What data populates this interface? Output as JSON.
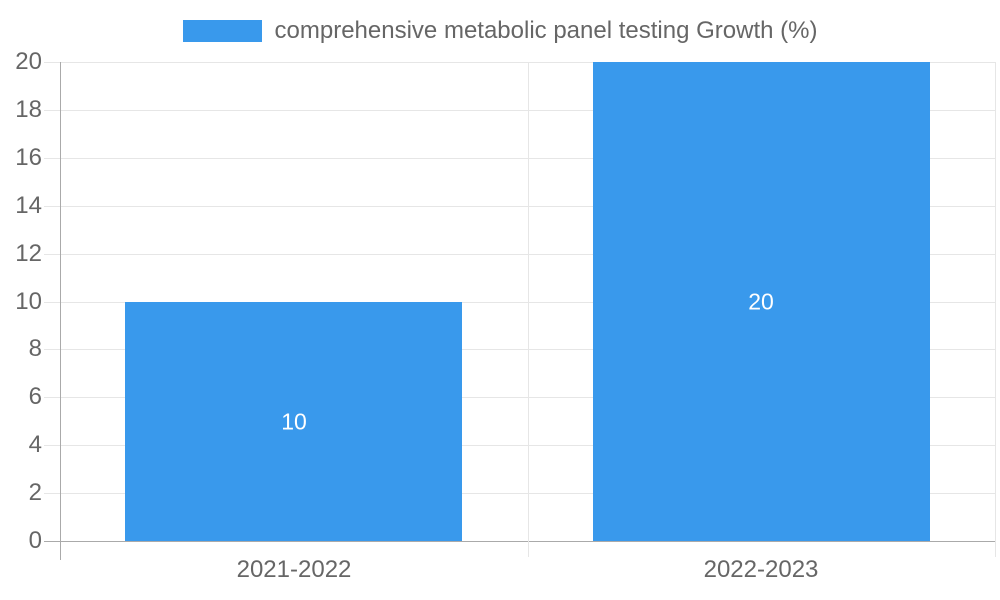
{
  "chart_data": {
    "type": "bar",
    "title": "",
    "legend": {
      "label": "comprehensive metabolic panel testing Growth (%)",
      "position": "top"
    },
    "categories": [
      "2021-2022",
      "2022-2023"
    ],
    "series": [
      {
        "name": "comprehensive metabolic panel testing Growth (%)",
        "values": [
          10,
          20
        ]
      }
    ],
    "data_labels": [
      "10",
      "20"
    ],
    "xlabel": "",
    "ylabel": "",
    "ylim": [
      0,
      20
    ],
    "yticks": [
      0,
      2,
      4,
      6,
      8,
      10,
      12,
      14,
      16,
      18,
      20
    ],
    "grid": true,
    "colors": {
      "bar": "#3999EC",
      "grid_light": "#E6E6E6",
      "axis_line": "#AAAAAA",
      "tick_label": "#666666",
      "legend_label": "#666666",
      "data_label": "#FFFFFF",
      "background": "#FFFFFF"
    }
  }
}
